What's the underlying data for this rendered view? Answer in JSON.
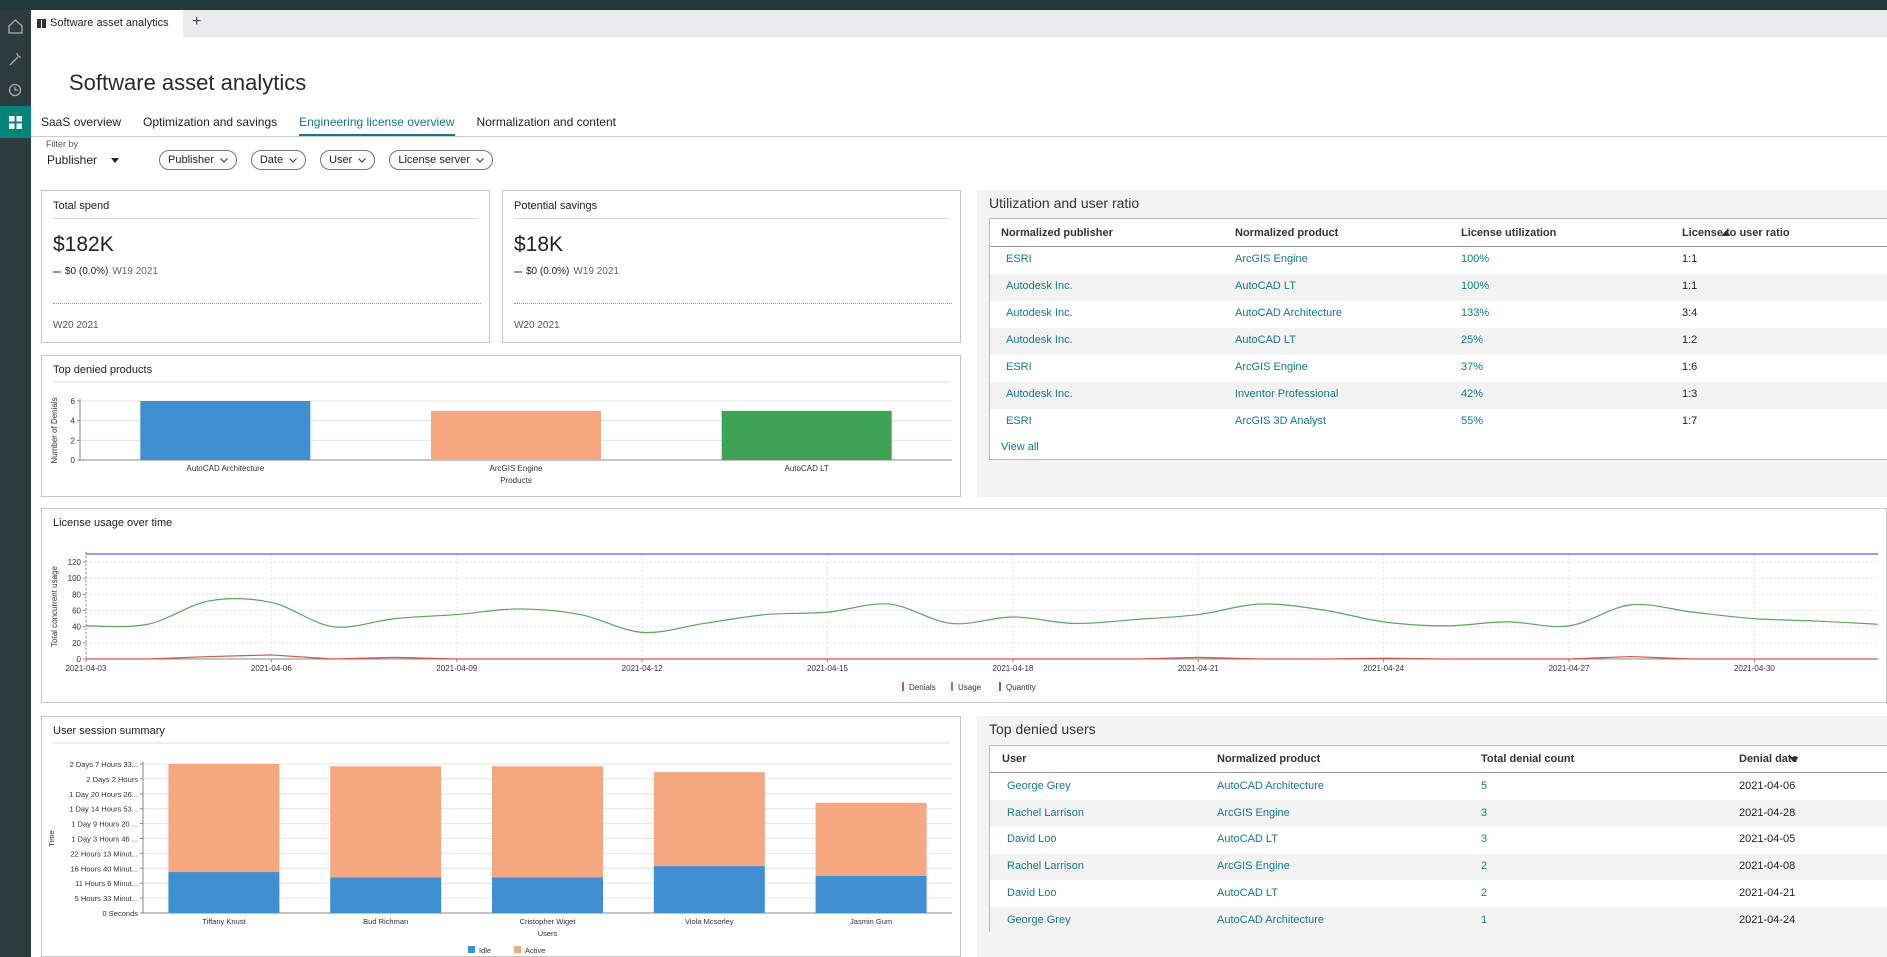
{
  "app": {
    "tab": "Software asset analytics",
    "add_tab": "+"
  },
  "header": {
    "title": "Software asset analytics"
  },
  "nav": {
    "tabs": [
      "SaaS overview",
      "Optimization and savings",
      "Engineering license overview",
      "Normalization and content"
    ],
    "active": 2
  },
  "filters": {
    "label": "Filter by",
    "select": "Publisher",
    "chips": [
      "Publisher",
      "Date",
      "User",
      "License server"
    ]
  },
  "kpis": [
    {
      "title": "Total spend",
      "value": "$182K",
      "change": "$0 (0.0%)",
      "period": "W19 2021",
      "footer": "W20 2021"
    },
    {
      "title": "Potential savings",
      "value": "$18K",
      "change": "$0 (0.0%)",
      "period": "W19 2021",
      "footer": "W20 2021"
    }
  ],
  "utilization": {
    "title": "Utilization and user ratio",
    "columns": [
      "Normalized publisher",
      "Normalized product",
      "License utilization",
      "License to user ratio"
    ],
    "rows": [
      [
        "ESRI",
        "ArcGIS Engine",
        "100%",
        "1:1"
      ],
      [
        "Autodesk Inc.",
        "AutoCAD LT",
        "100%",
        "1:1"
      ],
      [
        "Autodesk Inc.",
        "AutoCAD Architecture",
        "133%",
        "3:4"
      ],
      [
        "Autodesk Inc.",
        "AutoCAD LT",
        "25%",
        "1:2"
      ],
      [
        "ESRI",
        "ArcGIS Engine",
        "37%",
        "1:6"
      ],
      [
        "Autodesk Inc.",
        "Inventor Professional",
        "42%",
        "1:3"
      ],
      [
        "ESRI",
        "ArcGIS 3D Analyst",
        "55%",
        "1:7"
      ]
    ],
    "link": "View all"
  },
  "denied_users": {
    "title": "Top denied users",
    "columns": [
      "User",
      "Normalized product",
      "Total denial count",
      "Denial date"
    ],
    "rows": [
      [
        "George Grey",
        "AutoCAD Architecture",
        5,
        "2021-04-06"
      ],
      [
        "Rachel Larrison",
        "ArcGIS Engine",
        3,
        "2021-04-28"
      ],
      [
        "David Loo",
        "AutoCAD LT",
        3,
        "2021-04-05"
      ],
      [
        "Rachel Larrison",
        "ArcGIS Engine",
        2,
        "2021-04-08"
      ],
      [
        "David Loo",
        "AutoCAD LT",
        2,
        "2021-04-21"
      ],
      [
        "George Grey",
        "AutoCAD Architecture",
        1,
        "2021-04-24"
      ]
    ]
  },
  "chart_data": [
    {
      "type": "bar",
      "title": "Top denied products",
      "categories": [
        "AutoCAD Architecture",
        "ArcGIS Engine",
        "AutoCAD LT"
      ],
      "values": [
        6,
        5,
        5
      ],
      "colors": [
        "#3f8fd2",
        "#f5a880",
        "#3ea454"
      ],
      "ylim": [
        0,
        6
      ],
      "yticks": [
        0,
        2,
        4,
        6
      ],
      "y_label": "Number of Denials",
      "x_label": "Products",
      "grid": true
    },
    {
      "type": "line",
      "title": "License usage over time",
      "x": [
        "2021-04-03",
        "2021-04-04",
        "2021-04-05",
        "2021-04-06",
        "2021-04-07",
        "2021-04-08",
        "2021-04-09",
        "2021-04-10",
        "2021-04-11",
        "2021-04-12",
        "2021-04-13",
        "2021-04-14",
        "2021-04-15",
        "2021-04-16",
        "2021-04-17",
        "2021-04-18",
        "2021-04-19",
        "2021-04-20",
        "2021-04-21",
        "2021-04-22",
        "2021-04-23",
        "2021-04-24",
        "2021-04-25",
        "2021-04-26",
        "2021-04-27",
        "2021-04-28",
        "2021-04-29",
        "2021-04-30",
        "2021-05-01",
        "2021-05-02"
      ],
      "xticks": [
        "2021-04-03",
        "2021-04-06",
        "2021-04-09",
        "2021-04-12",
        "2021-04-15",
        "2021-04-18",
        "2021-04-21",
        "2021-04-24",
        "2021-04-27",
        "2021-04-30"
      ],
      "ylim": [
        0,
        130
      ],
      "yticks": [
        0,
        20,
        40,
        60,
        80,
        100,
        120
      ],
      "y_label": "Total concurrent usage",
      "grid": true,
      "series": [
        {
          "name": "Denials",
          "color": "#d9534f",
          "values": [
            0,
            0,
            3,
            5,
            0,
            2,
            0,
            0,
            0,
            0,
            0,
            0,
            0,
            0,
            0,
            0,
            0,
            0,
            2,
            0,
            0,
            1,
            0,
            0,
            0,
            3,
            0,
            0,
            0,
            0
          ]
        },
        {
          "name": "Usage",
          "color": "#5aa65a",
          "smooth": true,
          "values": [
            41,
            43,
            72,
            70,
            40,
            50,
            55,
            62,
            55,
            33,
            44,
            55,
            58,
            68,
            44,
            52,
            44,
            49,
            55,
            68,
            61,
            46,
            41,
            46,
            41,
            67,
            58,
            50,
            47,
            43
          ]
        },
        {
          "name": "Quantity",
          "color": "#6a5ae0",
          "values": [
            130,
            130,
            130,
            130,
            130,
            130,
            130,
            130,
            130,
            130,
            130,
            130,
            130,
            130,
            130,
            130,
            130,
            130,
            130,
            130,
            130,
            130,
            130,
            130,
            130,
            130,
            130,
            130,
            130,
            130
          ]
        }
      ]
    },
    {
      "type": "stacked_bar",
      "title": "User session summary",
      "categories": [
        "Tiffany Knust",
        "Bud Richman",
        "Cristopher Wiget",
        "Viola Mcsorley",
        "Jasmin Gum"
      ],
      "series": [
        {
          "name": "Idle",
          "color": "#3f8fd2",
          "values": [
            55000,
            48000,
            48000,
            63000,
            50000
          ]
        },
        {
          "name": "Active",
          "color": "#f5a880",
          "values": [
            145000,
            149000,
            149000,
            126000,
            98000
          ]
        }
      ],
      "ylim": [
        0,
        200000
      ],
      "yticks": [
        {
          "value": 0,
          "label": "0 Seconds"
        },
        {
          "value": 20000,
          "label": "5 Hours 33 Minut..."
        },
        {
          "value": 40000,
          "label": "11 Hours 6 Minut..."
        },
        {
          "value": 60000,
          "label": "16 Hours 40 Minut..."
        },
        {
          "value": 80000,
          "label": "22 Hours 13 Minut..."
        },
        {
          "value": 100000,
          "label": "1 Day 3 Hours 46 ..."
        },
        {
          "value": 120000,
          "label": "1 Day 9 Hours 20 ..."
        },
        {
          "value": 140000,
          "label": "1 Day 14 Hours 53..."
        },
        {
          "value": 160000,
          "label": "1 Day 20 Hours 26..."
        },
        {
          "value": 180000,
          "label": "2 Days 2 Hours"
        },
        {
          "value": 200000,
          "label": "2 Days 7 Hours 33..."
        }
      ],
      "y_label": "Time",
      "x_label": "Users",
      "grid": true
    }
  ]
}
